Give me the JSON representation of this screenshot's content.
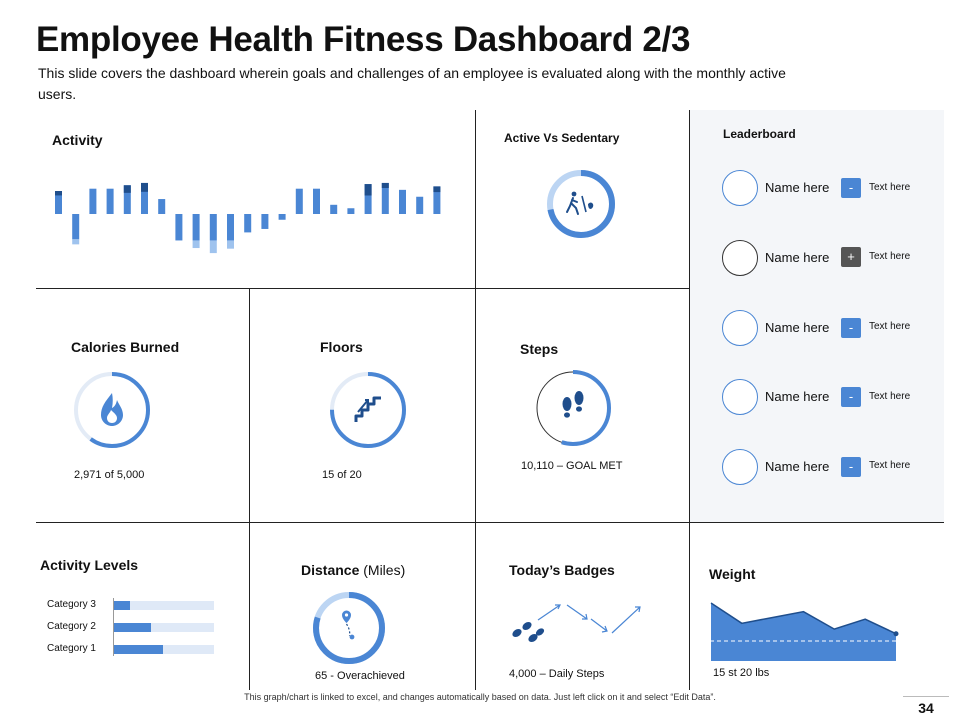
{
  "header": {
    "title": "Employee Health Fitness Dashboard 2/3",
    "subtitle": "This slide covers the dashboard wherein goals and challenges of an employee is evaluated along with the monthly active users."
  },
  "colors": {
    "accent": "#4a86d4",
    "dark": "#1f4e8c",
    "light": "#9fc3ee",
    "panel": "#f4f6f9"
  },
  "activity": {
    "label": "Activity",
    "bars": [
      [
        2,
        -0.7
      ],
      [
        -2.2,
        -0.8
      ],
      [
        2.2,
        0
      ],
      [
        2.2,
        0
      ],
      [
        2.5,
        1.2
      ],
      [
        2.7,
        1.4
      ],
      [
        1.3,
        0
      ],
      [
        -2.3,
        0
      ],
      [
        -2.3,
        -1.2
      ],
      [
        -2.3,
        -2
      ],
      [
        -2.3,
        -1.3
      ],
      [
        -1.6,
        0
      ],
      [
        -1.3,
        0
      ],
      [
        -0.5,
        0
      ],
      [
        2.2,
        0
      ],
      [
        2.2,
        0
      ],
      [
        0.8,
        0
      ],
      [
        0.5,
        0
      ],
      [
        2.6,
        1.8
      ],
      [
        2.7,
        0.8
      ],
      [
        2.1,
        0
      ],
      [
        1.5,
        0
      ],
      [
        2.4,
        0.9
      ]
    ]
  },
  "active_vs_sedentary": {
    "label": "Active Vs Sedentary",
    "icon": "walking-icon",
    "fraction": 0.72
  },
  "calories": {
    "label": "Calories Burned",
    "value": "2,971  of 5,000",
    "icon": "flame-icon",
    "fraction": 0.6
  },
  "floors": {
    "label": "Floors",
    "value": "15 of 20",
    "icon": "stairs-icon",
    "fraction": 0.75
  },
  "steps": {
    "label": "Steps",
    "value": "10,110 – GOAL MET",
    "icon": "footprints-icon",
    "fraction": 0.55
  },
  "leaderboard": {
    "label": "Leaderboard",
    "rows": [
      {
        "name": "Name here",
        "action": "-",
        "text": "Text here"
      },
      {
        "name": "Name here",
        "action": "+",
        "text": "Text here"
      },
      {
        "name": "Name here",
        "action": "-",
        "text": "Text here"
      },
      {
        "name": "Name here",
        "action": "-",
        "text": "Text here"
      },
      {
        "name": "Name here",
        "action": "-",
        "text": "Text here"
      }
    ]
  },
  "activity_levels": {
    "label": "Activity Levels",
    "categories": [
      {
        "name": "Category 3",
        "fraction": 0.16
      },
      {
        "name": "Category 2",
        "fraction": 0.37
      },
      {
        "name": "Category 1",
        "fraction": 0.49
      }
    ]
  },
  "distance": {
    "label": "Distance",
    "unit": "(Miles)",
    "value": "65 - Overachieved",
    "icon": "map-pin-icon",
    "fraction": 0.8
  },
  "badges": {
    "label": "Today’s Badges",
    "value": "4,000 – Daily Steps",
    "icon": "footprints-icon"
  },
  "weight": {
    "label": "Weight",
    "value": "15 st 20 lbs",
    "series": [
      10,
      6.5,
      7.5,
      8.5,
      5.5,
      7.2,
      4.7
    ]
  },
  "footer": {
    "note": "This graph/chart is linked to excel, and changes automatically based on data. Just left click on it and select “Edit Data”.",
    "page": "34"
  }
}
